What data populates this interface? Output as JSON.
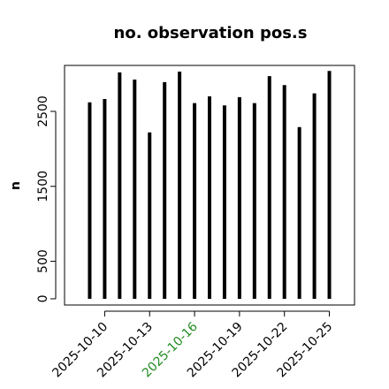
{
  "chart_data": {
    "type": "bar",
    "title": "no. observation pos.s",
    "ylabel": "n",
    "x": [
      "2025-10-09",
      "2025-10-10",
      "2025-10-11",
      "2025-10-12",
      "2025-10-13",
      "2025-10-14",
      "2025-10-15",
      "2025-10-16",
      "2025-10-17",
      "2025-10-18",
      "2025-10-19",
      "2025-10-20",
      "2025-10-21",
      "2025-10-22",
      "2025-10-23",
      "2025-10-24",
      "2025-10-25"
    ],
    "values": [
      2620,
      2665,
      3020,
      2925,
      2220,
      2890,
      3030,
      2610,
      2700,
      2580,
      2690,
      2610,
      2970,
      2850,
      2290,
      2740,
      3040
    ],
    "color": "#000000",
    "ylim": [
      -83,
      3113
    ],
    "yticks": [
      0,
      500,
      1500,
      2500
    ],
    "xticks": [
      "2025-10-10",
      "2025-10-13",
      "2025-10-16",
      "2025-10-19",
      "2025-10-22",
      "2025-10-25"
    ],
    "xtick_colors": [
      "#000000",
      "#000000",
      "#228b22",
      "#000000",
      "#000000",
      "#000000"
    ]
  }
}
